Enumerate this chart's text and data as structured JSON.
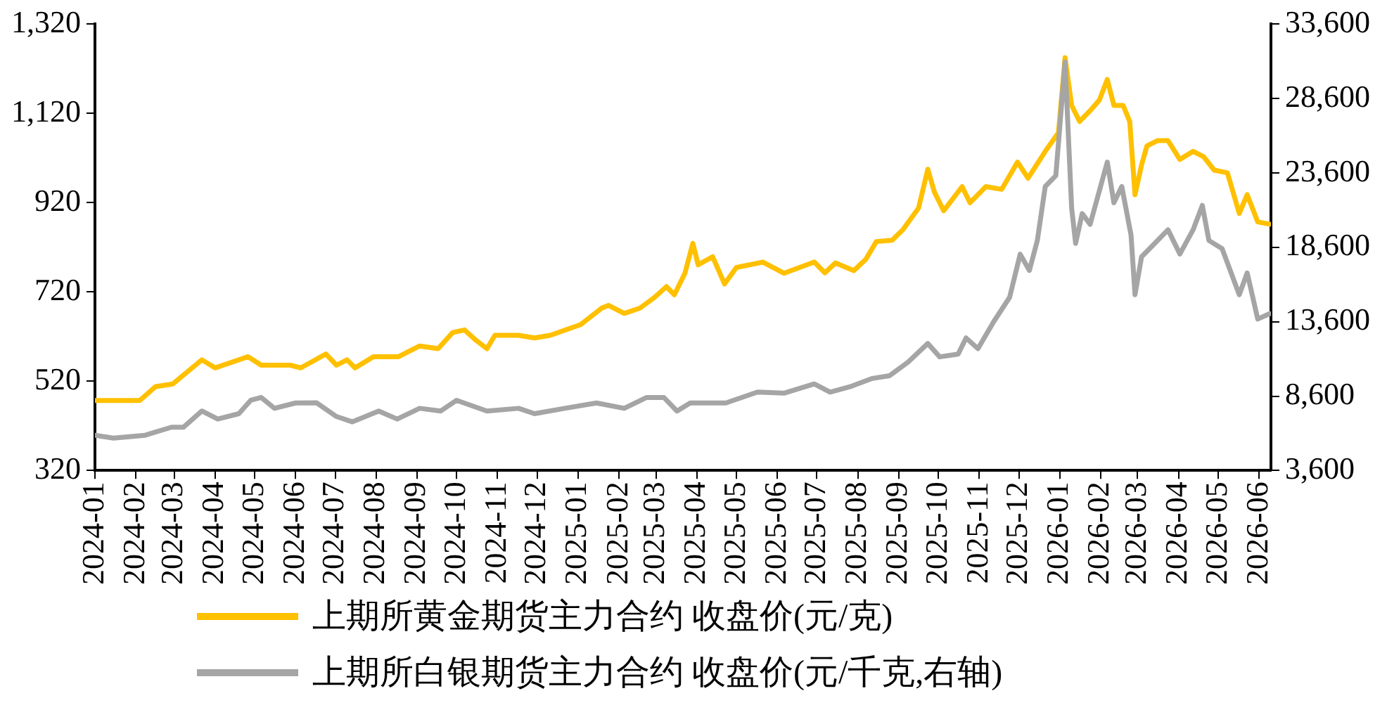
{
  "chart_data": {
    "type": "line",
    "legend": "bottom",
    "grid": false,
    "marker": "none",
    "line_style": "solid",
    "xlim": [
      "2024-01-01",
      "2026-06-10"
    ],
    "xticks": [
      "2024-01",
      "2024-02",
      "2024-03",
      "2024-04",
      "2024-05",
      "2024-06",
      "2024-07",
      "2024-08",
      "2024-09",
      "2024-10",
      "2024-11",
      "2024-12",
      "2025-01",
      "2025-02",
      "2025-03",
      "2025-04",
      "2025-05",
      "2025-06",
      "2025-07",
      "2025-08",
      "2025-09",
      "2025-10",
      "2025-11",
      "2025-12",
      "2026-01",
      "2026-02",
      "2026-03",
      "2026-04",
      "2026-05",
      "2026-06"
    ],
    "ylim": [
      320,
      1320
    ],
    "yticks": [
      320,
      520,
      720,
      920,
      {
        "value": 1120,
        "label": "1,120"
      },
      {
        "value": 1320,
        "label": "1,320"
      }
    ],
    "y2lim": [
      3600,
      33600
    ],
    "y2ticks": [
      {
        "value": 3600,
        "label": "3,600"
      },
      {
        "value": 8600,
        "label": "8,600"
      },
      {
        "value": 13600,
        "label": "13,600"
      },
      {
        "value": 18600,
        "label": "18,600"
      },
      {
        "value": 23600,
        "label": "23,600"
      },
      {
        "value": 28600,
        "label": "28,600"
      },
      {
        "value": 33600,
        "label": "33,600"
      }
    ],
    "series": [
      {
        "name": "上期所黄金期货主力合约 收盘价(元/克)",
        "color": "#ffc000",
        "x": [
          "2024-01-01",
          "2024-02-04",
          "2024-02-16",
          "2024-02-29",
          "2024-03-22",
          "2024-04-01",
          "2024-04-26",
          "2024-05-06",
          "2024-05-28",
          "2024-06-05",
          "2024-06-24",
          "2024-07-02",
          "2024-07-10",
          "2024-07-16",
          "2024-07-30",
          "2024-08-18",
          "2024-09-03",
          "2024-09-17",
          "2024-09-28",
          "2024-10-07",
          "2024-10-16",
          "2024-10-24",
          "2024-10-30",
          "2024-11-17",
          "2024-11-29",
          "2024-12-11",
          "2025-01-03",
          "2025-01-19",
          "2025-01-24",
          "2025-02-05",
          "2025-02-17",
          "2025-02-28",
          "2025-03-09",
          "2025-03-15",
          "2025-03-23",
          "2025-03-29",
          "2025-04-02",
          "2025-04-13",
          "2025-04-22",
          "2025-05-01",
          "2025-05-21",
          "2025-06-06",
          "2025-06-29",
          "2025-07-07",
          "2025-07-15",
          "2025-07-29",
          "2025-08-07",
          "2025-08-15",
          "2025-08-27",
          "2025-09-04",
          "2025-09-16",
          "2025-09-23",
          "2025-09-28",
          "2025-10-05",
          "2025-10-19",
          "2025-10-25",
          "2025-11-06",
          "2025-11-18",
          "2025-11-30",
          "2025-12-08",
          "2025-12-21",
          "2025-12-31",
          "2026-01-05",
          "2026-01-10",
          "2026-01-16",
          "2026-01-24",
          "2026-01-31",
          "2026-02-06",
          "2026-02-11",
          "2026-02-18",
          "2026-02-23",
          "2026-02-27",
          "2026-03-04",
          "2026-03-08",
          "2026-03-16",
          "2026-03-24",
          "2026-04-02",
          "2026-04-12",
          "2026-04-20",
          "2026-04-28",
          "2026-05-08",
          "2026-05-17",
          "2026-05-23",
          "2026-05-31",
          "2026-06-09"
        ],
        "values": [
          477,
          477,
          508,
          514,
          568,
          550,
          575,
          556,
          556,
          550,
          581,
          556,
          568,
          550,
          575,
          575,
          599,
          593,
          629,
          635,
          611,
          593,
          623,
          623,
          617,
          623,
          647,
          684,
          690,
          672,
          684,
          708,
          732,
          714,
          762,
          829,
          781,
          799,
          738,
          775,
          787,
          762,
          787,
          763,
          785,
          768,
          793,
          833,
          836,
          859,
          908,
          995,
          944,
          902,
          956,
          920,
          956,
          950,
          1011,
          975,
          1035,
          1077,
          1245,
          1138,
          1102,
          1126,
          1150,
          1196,
          1138,
          1138,
          1102,
          938,
          1005,
          1047,
          1059,
          1059,
          1017,
          1035,
          1023,
          993,
          987,
          896,
          938,
          877,
          872
        ]
      },
      {
        "name": "上期所白银期货主力合约 收盘价(元/千克,右轴)",
        "color": "#a5a5a5",
        "axis": "y2",
        "x": [
          "2024-01-01",
          "2024-01-15",
          "2024-02-08",
          "2024-02-28",
          "2024-03-08",
          "2024-03-22",
          "2024-04-03",
          "2024-04-19",
          "2024-04-28",
          "2024-05-06",
          "2024-05-16",
          "2024-06-01",
          "2024-06-17",
          "2024-07-02",
          "2024-07-14",
          "2024-08-03",
          "2024-08-17",
          "2024-09-03",
          "2024-09-19",
          "2024-10-01",
          "2024-10-24",
          "2024-11-17",
          "2024-11-29",
          "2024-12-22",
          "2025-01-15",
          "2025-02-05",
          "2025-02-22",
          "2025-03-07",
          "2025-03-17",
          "2025-03-27",
          "2025-04-23",
          "2025-05-17",
          "2025-06-06",
          "2025-06-29",
          "2025-07-11",
          "2025-07-26",
          "2025-08-12",
          "2025-08-25",
          "2025-09-08",
          "2025-09-23",
          "2025-10-02",
          "2025-10-16",
          "2025-10-22",
          "2025-10-31",
          "2025-11-12",
          "2025-11-24",
          "2025-12-02",
          "2025-12-09",
          "2025-12-15",
          "2025-12-21",
          "2025-12-29",
          "2026-01-05",
          "2026-01-10",
          "2026-01-13",
          "2026-01-18",
          "2026-01-24",
          "2026-02-06",
          "2026-02-11",
          "2026-02-17",
          "2026-02-24",
          "2026-02-27",
          "2026-03-04",
          "2026-03-12",
          "2026-03-24",
          "2026-04-02",
          "2026-04-12",
          "2026-04-19",
          "2026-04-24",
          "2026-05-04",
          "2026-05-17",
          "2026-05-23",
          "2026-05-31",
          "2026-06-09"
        ],
        "values": [
          5970,
          5780,
          5970,
          6510,
          6510,
          7600,
          7060,
          7420,
          8320,
          8510,
          7780,
          8140,
          8150,
          7230,
          6870,
          7600,
          7060,
          7780,
          7600,
          8320,
          7600,
          7780,
          7420,
          7780,
          8140,
          7780,
          8510,
          8510,
          7600,
          8140,
          8140,
          8870,
          8800,
          9420,
          8870,
          9230,
          9790,
          9970,
          10880,
          12140,
          11240,
          11420,
          12510,
          11790,
          13610,
          15240,
          18140,
          17050,
          19060,
          22690,
          23420,
          31060,
          21240,
          18870,
          20870,
          20150,
          24330,
          21600,
          22690,
          19420,
          15420,
          17970,
          18690,
          19780,
          18150,
          19780,
          21420,
          19060,
          18510,
          15420,
          16880,
          13780,
          14140
        ]
      }
    ]
  }
}
